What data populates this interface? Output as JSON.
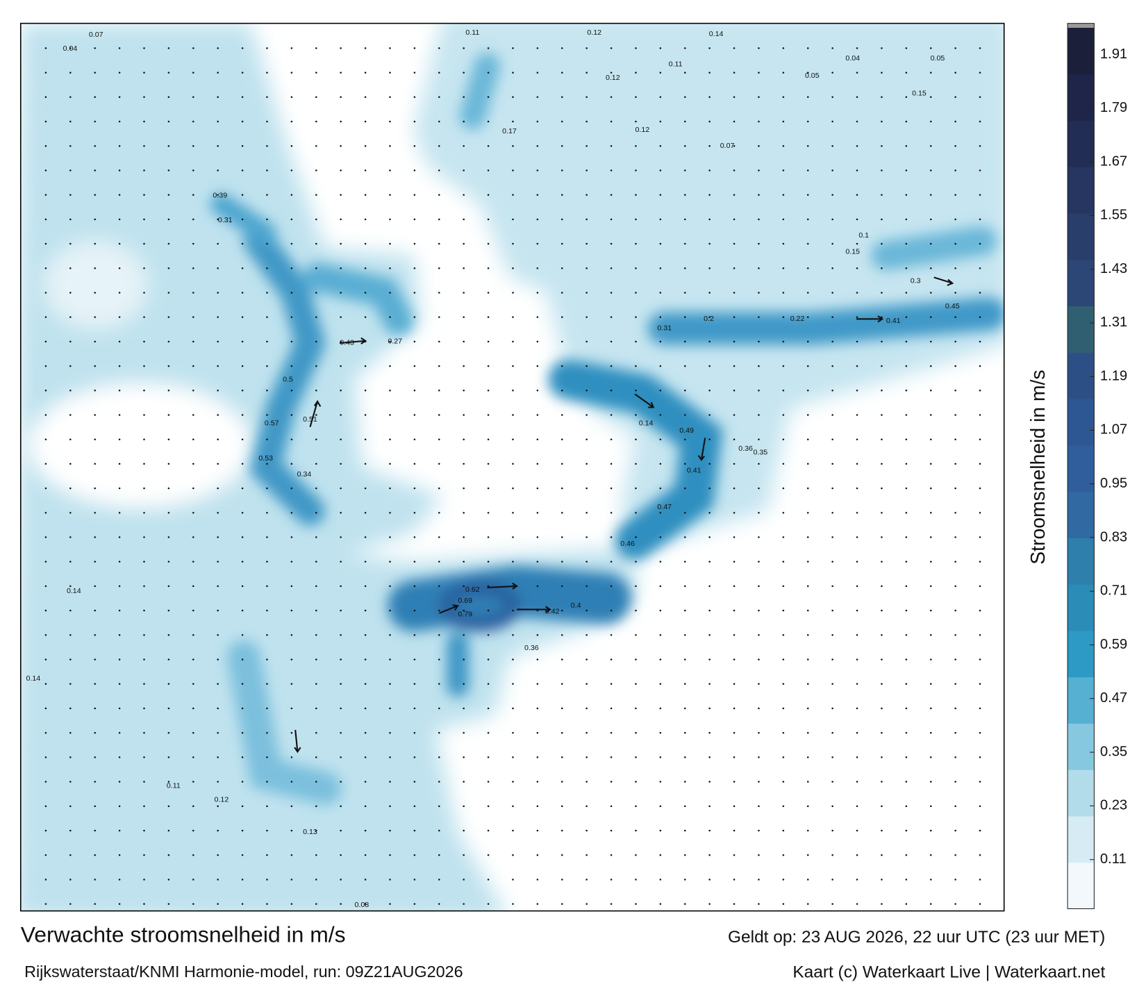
{
  "title": "Verwachte stroomsnelheid in m/s",
  "subtitle": "Rijkswaterstaat/KNMI Harmonie-model, run: 09Z21AUG2026",
  "valid": "Geldt op: 23 AUG 2026, 22 uur UTC (23 uur MET)",
  "credit": "Kaart (c) Waterkaart Live | Waterkaart.net",
  "colorbar": {
    "label": "Stroomsnelheid in m/s",
    "range": [
      0,
      1.97
    ],
    "ticks": [
      0.11,
      0.23,
      0.35,
      0.47,
      0.59,
      0.71,
      0.83,
      0.95,
      1.07,
      1.19,
      1.31,
      1.43,
      1.55,
      1.67,
      1.79,
      1.91
    ],
    "colors": [
      "#f2f8fb",
      "#d6ebf3",
      "#b3dcea",
      "#86c8df",
      "#55b0d2",
      "#2c9ac4",
      "#2a8cb7",
      "#2e7fab",
      "#316aa2",
      "#305e9c",
      "#2d5792",
      "#2c5086",
      "#315f72",
      "#2c4676",
      "#293e6a",
      "#263660",
      "#222d55",
      "#1e2548",
      "#1b1f3a"
    ]
  },
  "map": {
    "labels": [
      0.11,
      0.12,
      0.14,
      0.12,
      0.11,
      0.05,
      0.15,
      0.17,
      0.12,
      0.07,
      0.15,
      0.1,
      0.3,
      0.45,
      0.41,
      0.22,
      0.2,
      0.31,
      0.14,
      0.49,
      0.41,
      0.36,
      0.35,
      0.47,
      0.46,
      0.79,
      0.42,
      0.4,
      0.62,
      0.69,
      0.36,
      0.43,
      0.27,
      0.51,
      0.57,
      0.5,
      0.53,
      0.34,
      0.31,
      0.39,
      0.11,
      0.12,
      0.13,
      0.08,
      0.14,
      0.14,
      0.07,
      0.04,
      0.04,
      0.05
    ]
  }
}
